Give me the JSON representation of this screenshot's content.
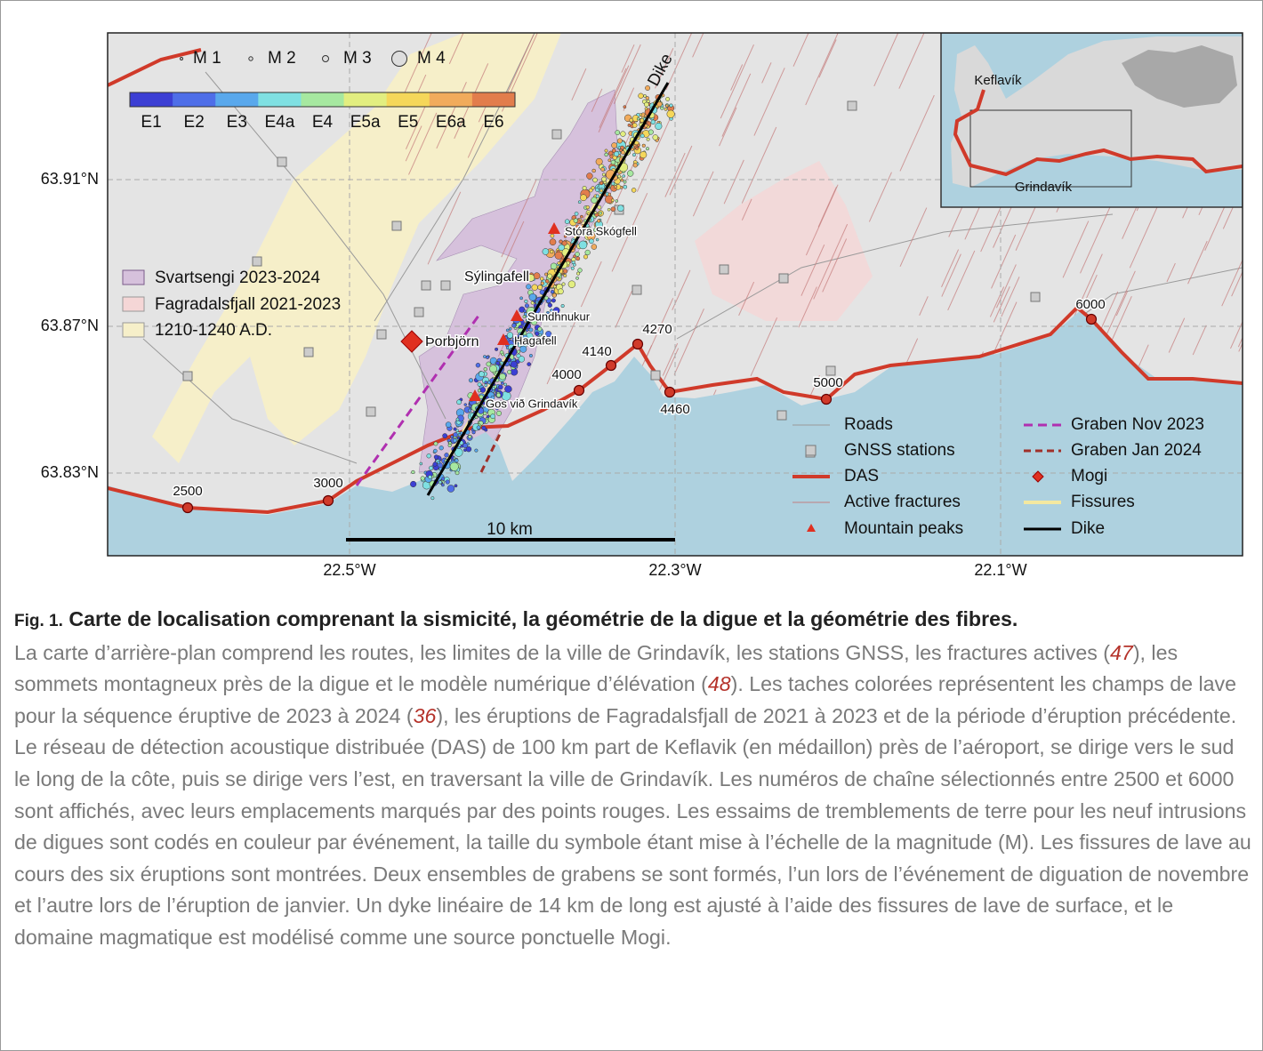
{
  "figure": {
    "magnitude_legend": [
      "M 1",
      "M 2",
      "M 3",
      "M 4"
    ],
    "colorbar_labels": [
      "E1",
      "E2",
      "E3",
      "E4a",
      "E4",
      "E5a",
      "E5",
      "E6a",
      "E6"
    ],
    "lat_labels": [
      "63.91°N",
      "63.87°N",
      "63.83°N"
    ],
    "lon_labels": [
      "22.5°W",
      "22.3°W",
      "22.1°W"
    ],
    "places": [
      "Dike",
      "Stóra Skógfell",
      "Sýlingafell",
      "Sundhnukur",
      "Hagafell",
      "Þorbjörn",
      "Gos við Grindavík"
    ],
    "das_channels": [
      "2500",
      "3000",
      "4000",
      "4140",
      "4270",
      "4460",
      "5000",
      "6000"
    ],
    "scale_bar": "10 km",
    "lava_legend": [
      "Svartsengi 2023-2024",
      "Fagradalsfjall 2021-2023",
      "1210-1240 A.D."
    ],
    "inset_labels": [
      "Keflavík",
      "Grindavík"
    ],
    "legend": [
      "Roads",
      "GNSS stations",
      "DAS",
      "Active fractures",
      "Mountain peaks",
      "Graben Nov 2023",
      "Graben Jan 2024",
      "Mogi",
      "Fissures",
      "Dike"
    ]
  },
  "caption": {
    "label": "Fig. 1.",
    "title": "Carte de localisation comprenant la sismicité, la géométrie de la digue et la géométrie des fibres.",
    "body": [
      "La carte d’arrière-plan comprend les routes, les limites de la ville de Grindavík, les stations GNSS, les fractures actives (",
      "47",
      "), les sommets montagneux près de la digue et le modèle numérique d’élévation (",
      "48",
      "). Les taches colorées représentent les champs de lave pour la séquence éruptive de 2023 à 2024 (",
      "36",
      "), les éruptions de Fagradalsfjall de 2021 à 2023 et de la période d’éruption précédente. Le réseau de détection acoustique distribuée (DAS) de 100 km part de Keflavik (en médaillon) près de l’aéroport, se dirige vers le sud le long de la côte, puis se dirige vers l’est, en traversant la ville de Grindavík. Les numéros de chaîne sélectionnés entre 2500 et 6000 sont affichés, avec leurs emplacements marqués par des points rouges. Les essaims de tremblements de terre pour les neuf intrusions de digues sont codés en couleur par événement, la taille du symbole étant mise à l’échelle de la magnitude (M). Les fissures de lave au cours des six éruptions sont montrées. Deux ensembles de grabens se sont formés, l’un lors de l’événement de diguation de novembre et l’autre lors de l’éruption de janvier. Un dyke linéaire de 14 km de long est ajusté à l’aide des fissures de lave de surface, et le domaine magmatique est modélisé comme une source ponctuelle Mogi."
    ]
  }
}
